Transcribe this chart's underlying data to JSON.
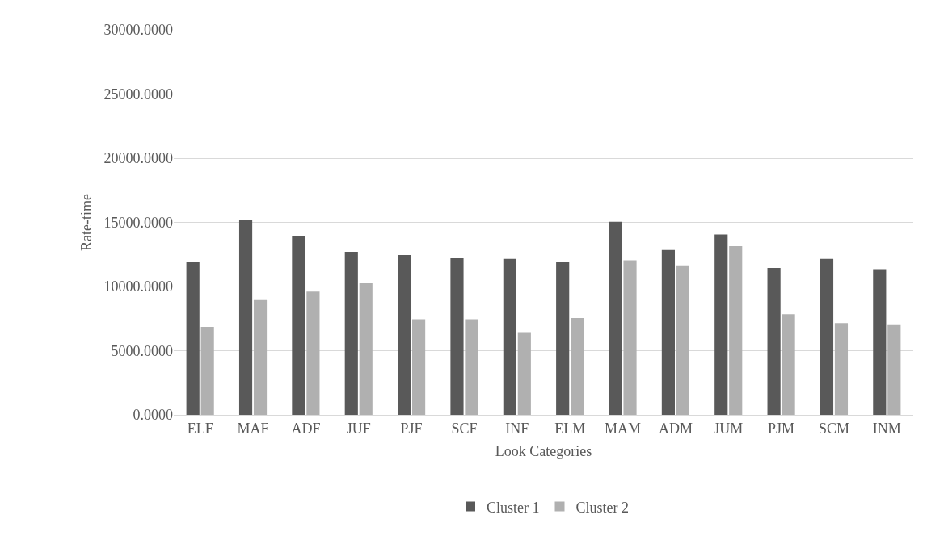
{
  "chart_data": {
    "type": "bar",
    "xlabel": "Look Categories",
    "ylabel": "Rate-time",
    "categories": [
      "ELF",
      "MAF",
      "ADF",
      "JUF",
      "PJF",
      "SCF",
      "INF",
      "ELM",
      "MAM",
      "ADM",
      "JUM",
      "PJM",
      "SCM",
      "INM"
    ],
    "series": [
      {
        "name": "Cluster 1",
        "color": "#595959",
        "values": [
          11900,
          15150,
          13950,
          12700,
          12450,
          12200,
          12150,
          11950,
          15050,
          12850,
          14050,
          11450,
          12150,
          11350
        ]
      },
      {
        "name": "Cluster 2",
        "color": "#b0b0b0",
        "values": [
          6850,
          8950,
          9600,
          10250,
          7450,
          7450,
          6450,
          7550,
          12050,
          11650,
          13150,
          7850,
          7150,
          7000
        ]
      }
    ],
    "ylim": [
      0,
      30000
    ],
    "yticks": [
      {
        "value": 0,
        "label": "0.0000"
      },
      {
        "value": 5000,
        "label": "5000.0000"
      },
      {
        "value": 10000,
        "label": "10000.0000"
      },
      {
        "value": 15000,
        "label": "15000.0000"
      },
      {
        "value": 20000,
        "label": "20000.0000"
      },
      {
        "value": 25000,
        "label": "25000.0000"
      },
      {
        "value": 30000,
        "label": "30000.0000"
      }
    ],
    "grid": "y",
    "legend": "bottom"
  }
}
